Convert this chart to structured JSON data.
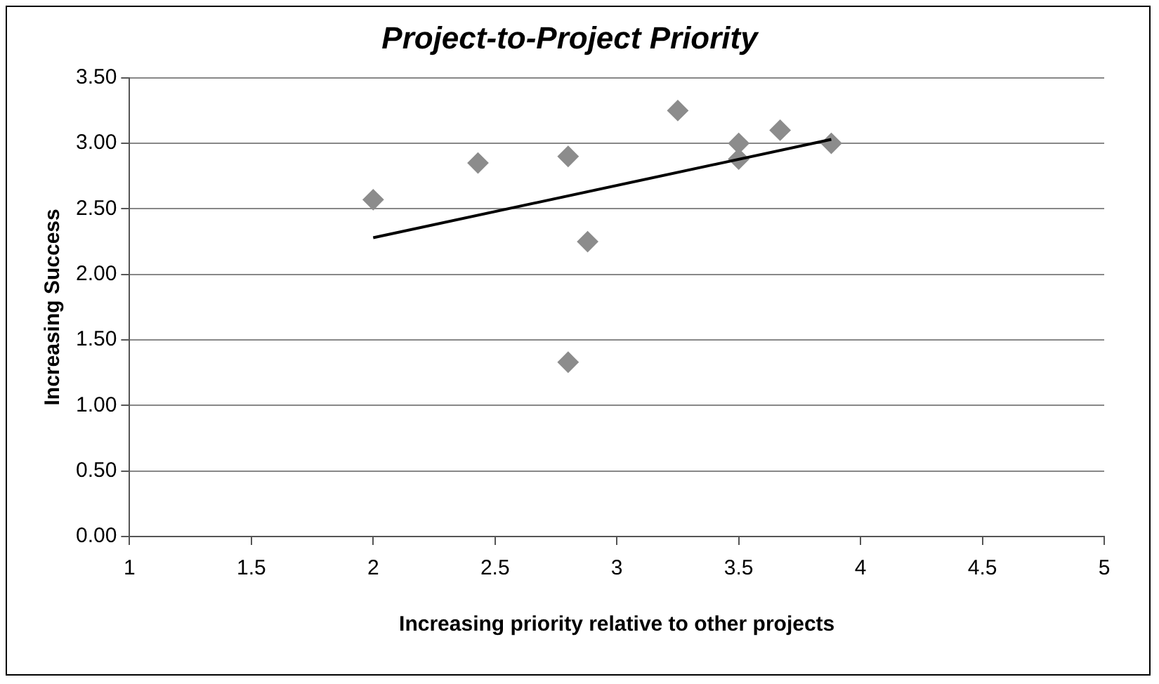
{
  "chart_data": {
    "type": "scatter",
    "title": "Project-to-Project Priority",
    "xlabel": "Increasing priority relative to other projects",
    "ylabel": "Increasing Success",
    "series": [
      {
        "color": "#8c8c8c",
        "x": [
          2,
          2.43,
          2.8,
          2.8,
          2.88,
          3.25,
          3.5,
          3.5,
          3.67,
          3.88
        ],
        "values": [
          2.57,
          2.85,
          2.9,
          1.33,
          2.25,
          3.25,
          3.0,
          2.88,
          3.1,
          3.0
        ],
        "marker": "diamond"
      },
      {
        "type": "line",
        "color": "#000000",
        "x": [
          2,
          3.88
        ],
        "values": [
          2.28,
          3.03
        ],
        "marker": "none"
      }
    ],
    "xlim": [
      1,
      5
    ],
    "xticks": [
      1,
      1.5,
      2,
      2.5,
      3,
      3.5,
      4,
      4.5,
      5
    ],
    "ylim": [
      0,
      3.5
    ],
    "yticks": [
      {
        "value": 0,
        "label": "0.00"
      },
      {
        "value": 0.5,
        "label": "0.50"
      },
      {
        "value": 1,
        "label": "1.00"
      },
      {
        "value": 1.5,
        "label": "1.50"
      },
      {
        "value": 2,
        "label": "2.00"
      },
      {
        "value": 2.5,
        "label": "2.50"
      },
      {
        "value": 3,
        "label": "3.00"
      },
      {
        "value": 3.5,
        "label": "3.50"
      }
    ],
    "grid": "y",
    "legend": false
  }
}
